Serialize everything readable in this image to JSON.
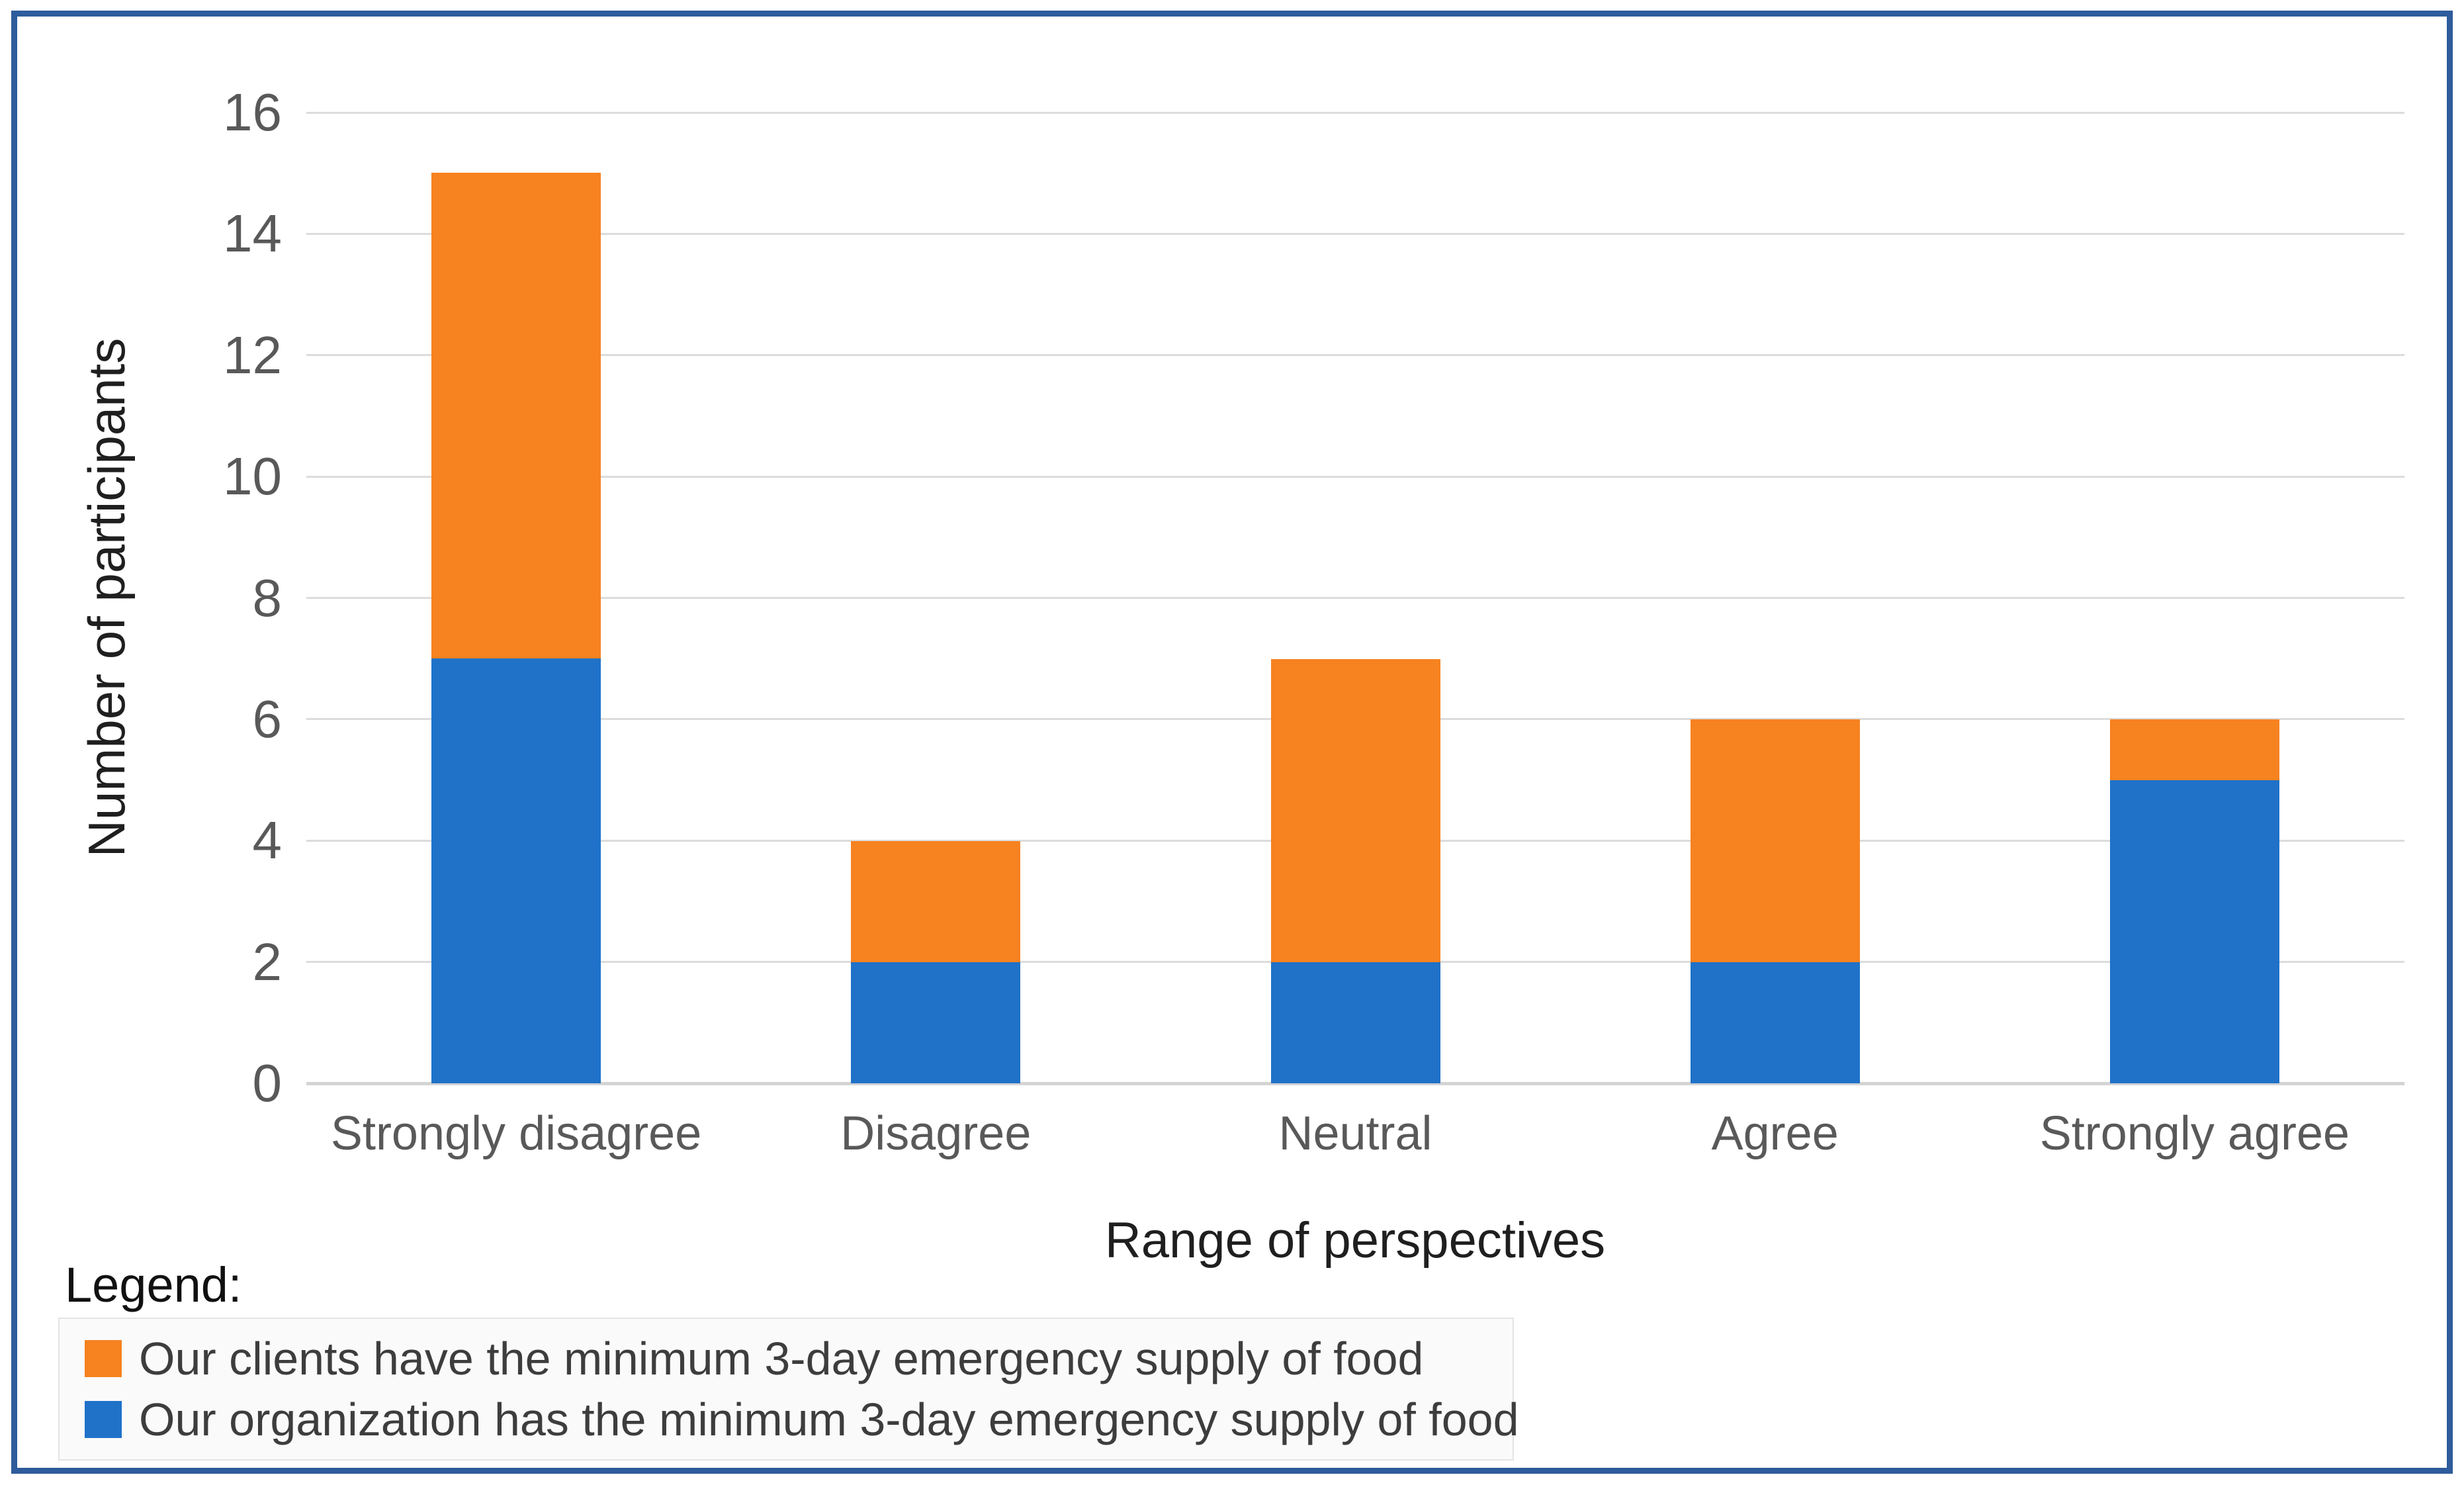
{
  "figure": {
    "type_note": "stacked bar chart in blue-bordered frame"
  },
  "legend": {
    "heading": "Legend:"
  },
  "colors": {
    "frame_border": "#2e5c9c",
    "gridline": "#dcdcdc",
    "axis_line": "#d4d4d4",
    "tick_text": "#595959",
    "title_text": "#1f1f1f",
    "legend_text": "#3d3d3d",
    "legend_box_bg": "#fafafa",
    "legend_box_border": "#e4e4e4"
  },
  "chart_data": {
    "type": "bar",
    "subtype": "stacked-vertical",
    "categories": [
      "Strongly disagree",
      "Disagree",
      "Neutral",
      "Agree",
      "Strongly agree"
    ],
    "series": [
      {
        "name": "Our clients have the minimum 3-day emergency supply of food",
        "color": "#f68220",
        "stack_position": "top",
        "values": [
          8,
          2,
          5,
          4,
          1
        ]
      },
      {
        "name": "Our organization has the minimum 3-day emergency supply of food",
        "color": "#1f72c8",
        "stack_position": "bottom",
        "values": [
          7,
          2,
          2,
          2,
          5
        ]
      }
    ],
    "stack_totals": [
      15,
      4,
      7,
      6,
      6
    ],
    "title": "",
    "xlabel": "Range of perspectives",
    "ylabel": "Number of participants",
    "ylim": [
      0,
      16
    ],
    "ytick_step": 2,
    "ytick_labels": [
      "0",
      "2",
      "4",
      "6",
      "8",
      "10",
      "12",
      "14",
      "16"
    ],
    "grid": true,
    "legend_position": "below-left"
  }
}
